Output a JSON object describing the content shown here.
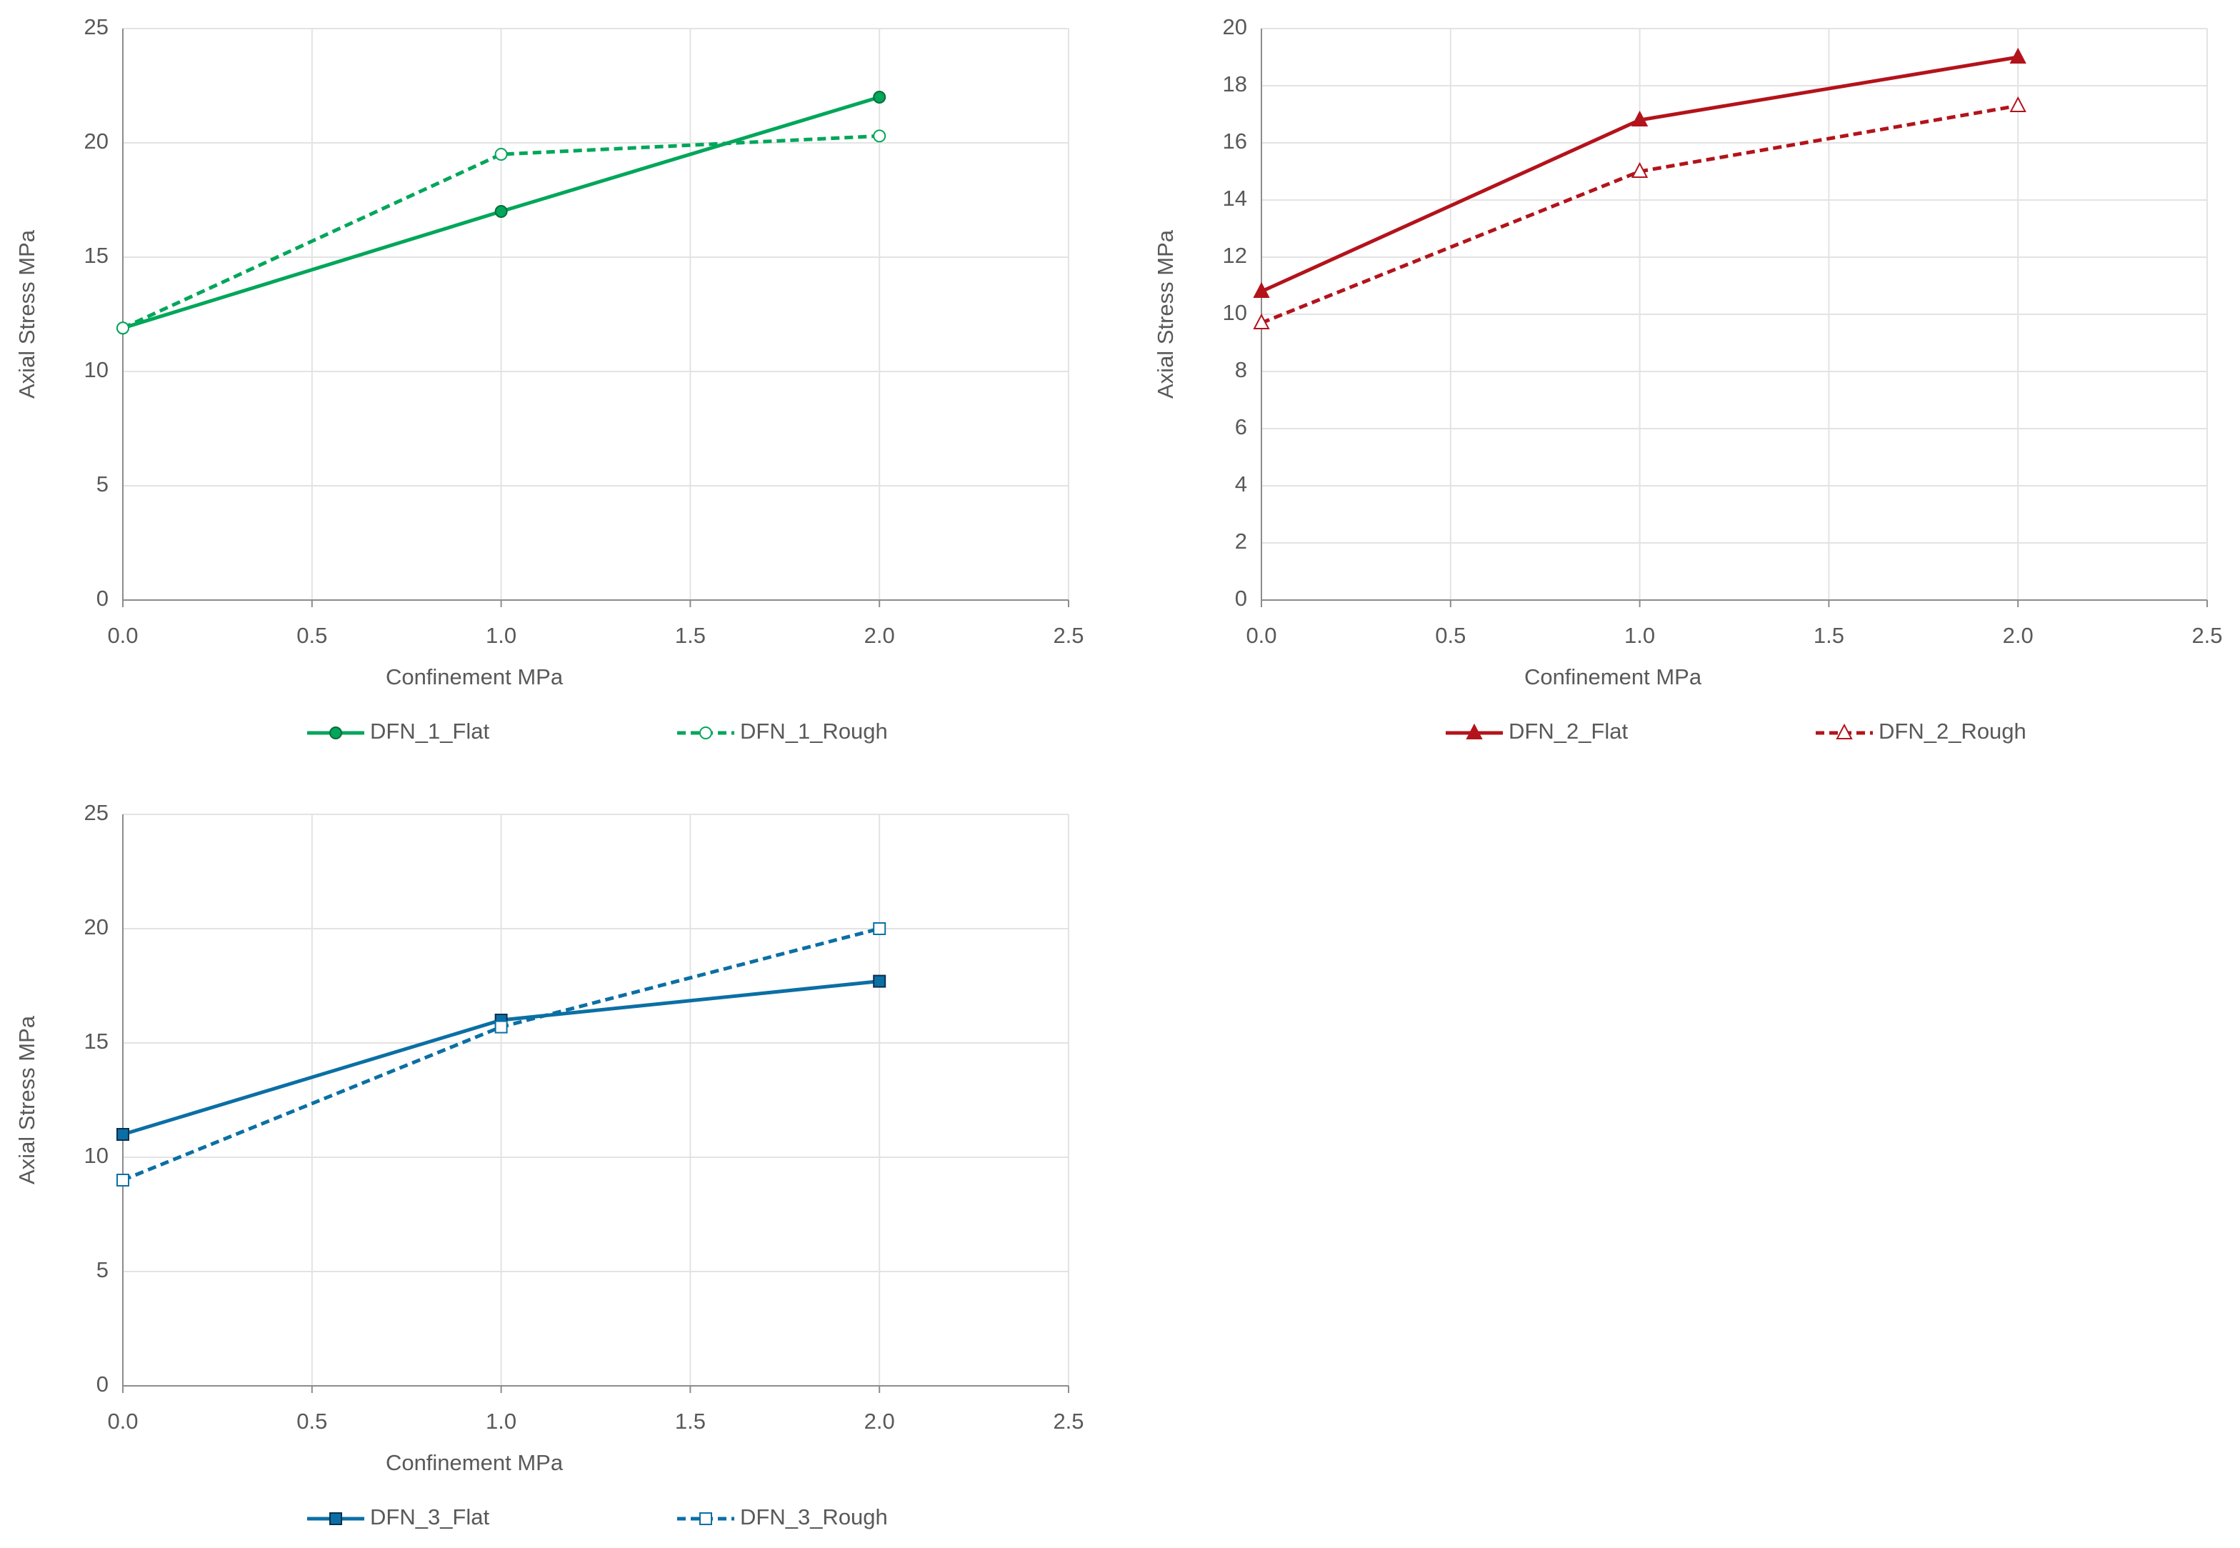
{
  "chart_data": [
    {
      "type": "line",
      "xlabel": "Confinement  MPa",
      "ylabel": "Axial Stress MPa",
      "xlim": [
        0,
        2.5
      ],
      "xticks": [
        {
          "value": 0,
          "label": "0.0"
        },
        0.5,
        {
          "value": 1,
          "label": "1.0"
        },
        1.5,
        {
          "value": 2,
          "label": "2.0"
        },
        2.5
      ],
      "ylim": [
        0,
        25
      ],
      "yticks": [
        0,
        5,
        10,
        15,
        20,
        25
      ],
      "grid": true,
      "x": [
        0,
        1,
        2
      ],
      "series": [
        {
          "name": "DFN_1_Flat",
          "color": "#00a65a",
          "values": [
            11.9,
            17,
            22
          ],
          "dashed": false,
          "marker": "circle",
          "filled": true
        },
        {
          "name": "DFN_1_Rough",
          "color": "#00a65a",
          "values": [
            11.9,
            19.5,
            20.3
          ],
          "dashed": true,
          "marker": "circle",
          "filled": false
        }
      ]
    },
    {
      "type": "line",
      "xlabel": "Confinement  MPa",
      "ylabel": "Axial Stress MPa",
      "xlim": [
        0,
        2.5
      ],
      "xticks": [
        {
          "value": 0,
          "label": "0.0"
        },
        0.5,
        {
          "value": 1,
          "label": "1.0"
        },
        1.5,
        {
          "value": 2,
          "label": "2.0"
        },
        2.5
      ],
      "ylim": [
        0,
        20
      ],
      "yticks": [
        0,
        2,
        4,
        6,
        8,
        10,
        12,
        14,
        16,
        18,
        20
      ],
      "grid": true,
      "x": [
        0,
        1,
        2
      ],
      "series": [
        {
          "name": "DFN_2_Flat",
          "color": "#b3131b",
          "values": [
            10.8,
            16.8,
            19
          ],
          "dashed": false,
          "marker": "triangle",
          "filled": true
        },
        {
          "name": "DFN_2_Rough",
          "color": "#b3131b",
          "values": [
            9.7,
            15,
            17.3
          ],
          "dashed": true,
          "marker": "triangle",
          "filled": false
        }
      ]
    },
    {
      "type": "line",
      "xlabel": "Confinement  MPa",
      "ylabel": "Axial Stress MPa",
      "xlim": [
        0,
        2.5
      ],
      "xticks": [
        {
          "value": 0,
          "label": "0.0"
        },
        0.5,
        {
          "value": 1,
          "label": "1.0"
        },
        1.5,
        {
          "value": 2,
          "label": "2.0"
        },
        2.5
      ],
      "ylim": [
        0,
        25
      ],
      "yticks": [
        0,
        5,
        10,
        15,
        20,
        25
      ],
      "grid": true,
      "x": [
        0,
        1,
        2
      ],
      "series": [
        {
          "name": "DFN_3_Flat",
          "color": "#0b6fa4",
          "values": [
            11,
            16,
            17.7
          ],
          "dashed": false,
          "marker": "square",
          "filled": true
        },
        {
          "name": "DFN_3_Rough",
          "color": "#0b6fa4",
          "values": [
            9,
            15.7,
            20
          ],
          "dashed": true,
          "marker": "square",
          "filled": false
        }
      ]
    }
  ]
}
